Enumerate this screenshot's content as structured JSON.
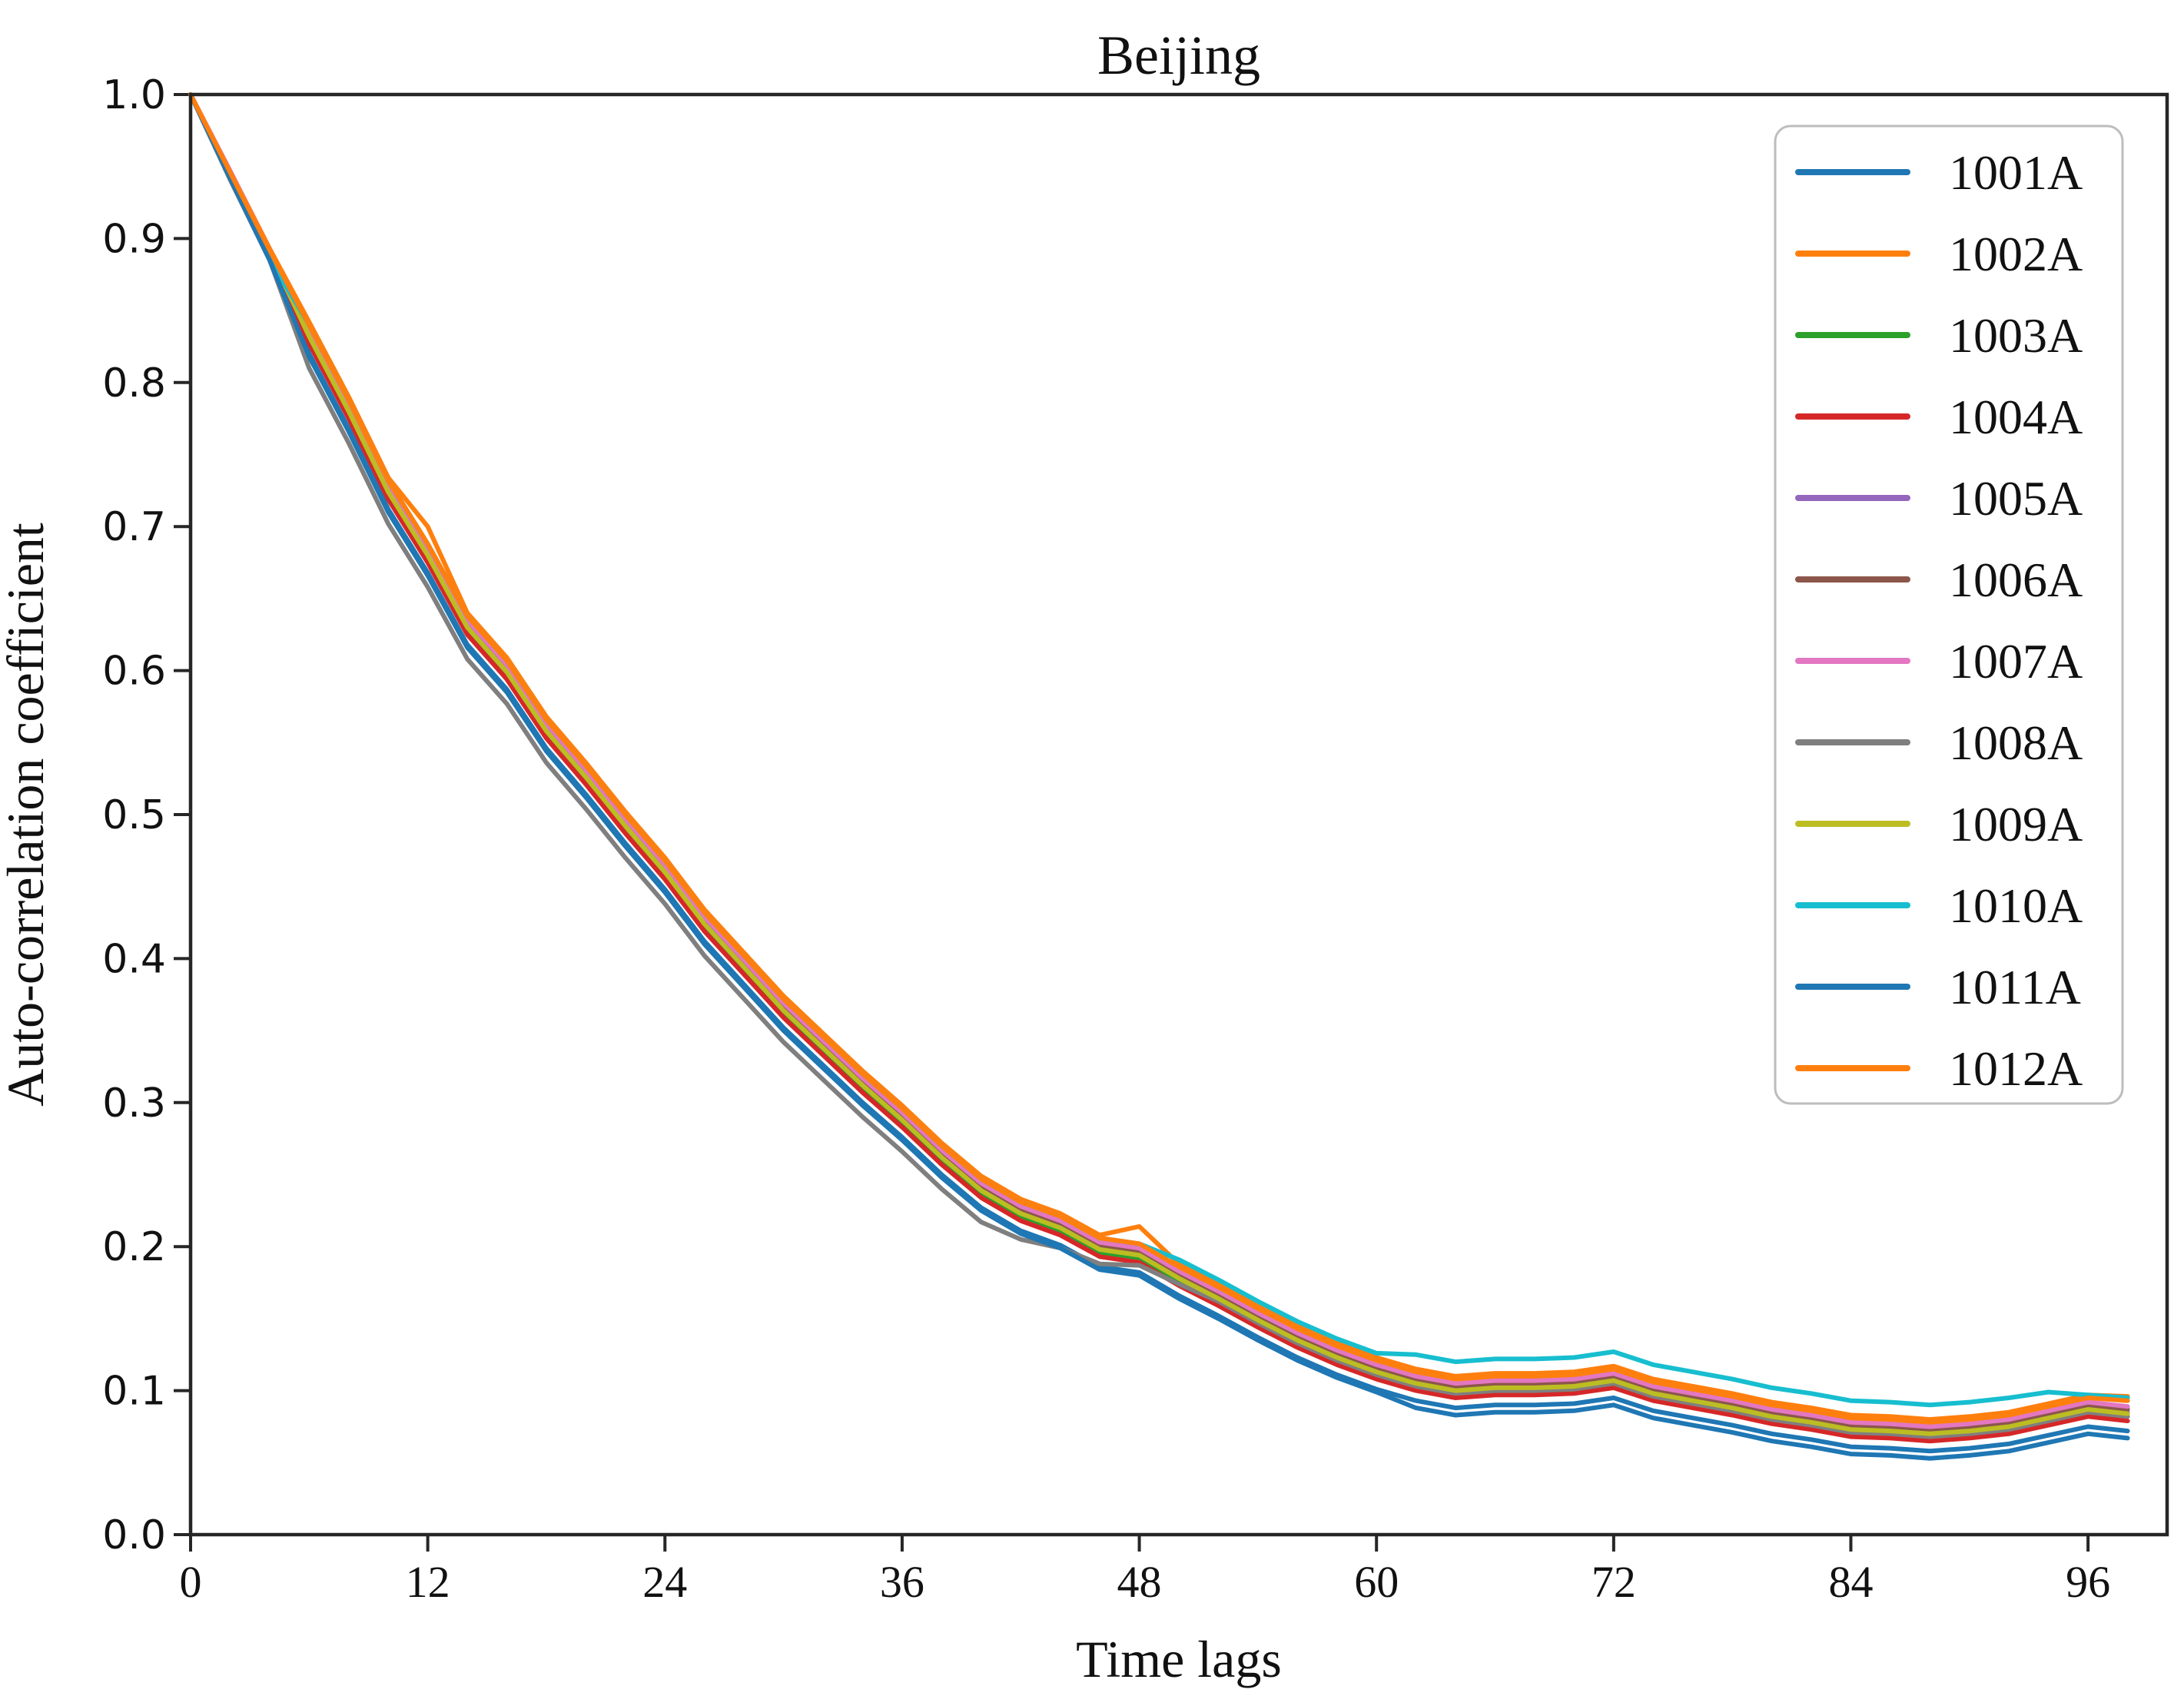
{
  "chart_data": {
    "type": "line",
    "title": "Beijing",
    "xlabel": "Time lags",
    "ylabel": "Auto-correlation coefficient",
    "xlim": [
      0,
      100
    ],
    "ylim": [
      0.0,
      1.0
    ],
    "x_ticks": [
      0,
      12,
      24,
      36,
      48,
      60,
      72,
      84,
      96
    ],
    "y_ticks": [
      0.0,
      0.1,
      0.2,
      0.3,
      0.4,
      0.5,
      0.6,
      0.7,
      0.8,
      0.9,
      1.0
    ],
    "grid": false,
    "legend_position": "upper right",
    "x": [
      0,
      2,
      4,
      6,
      8,
      10,
      12,
      14,
      16,
      18,
      20,
      22,
      24,
      26,
      28,
      30,
      32,
      34,
      36,
      38,
      40,
      42,
      44,
      46,
      48,
      50,
      52,
      54,
      56,
      58,
      60,
      62,
      64,
      66,
      68,
      70,
      72,
      74,
      76,
      78,
      80,
      82,
      84,
      86,
      88,
      90,
      92,
      94,
      96,
      98
    ],
    "series": [
      {
        "name": "1001A",
        "color": "#1f77b4",
        "values": [
          1.0,
          0.943,
          0.886,
          0.82,
          0.768,
          0.712,
          0.668,
          0.618,
          0.587,
          0.546,
          0.514,
          0.48,
          0.448,
          0.412,
          0.382,
          0.352,
          0.326,
          0.3,
          0.276,
          0.25,
          0.227,
          0.211,
          0.201,
          0.186,
          0.182,
          0.166,
          0.152,
          0.137,
          0.123,
          0.111,
          0.101,
          0.093,
          0.088,
          0.09,
          0.09,
          0.091,
          0.095,
          0.086,
          0.081,
          0.076,
          0.07,
          0.066,
          0.061,
          0.06,
          0.058,
          0.06,
          0.063,
          0.069,
          0.075,
          0.072
        ]
      },
      {
        "name": "1002A",
        "color": "#ff7f0e",
        "values": [
          1.0,
          0.947,
          0.893,
          0.842,
          0.79,
          0.734,
          0.7,
          0.64,
          0.609,
          0.568,
          0.536,
          0.502,
          0.47,
          0.434,
          0.404,
          0.374,
          0.348,
          0.322,
          0.298,
          0.272,
          0.249,
          0.233,
          0.223,
          0.208,
          0.214,
          0.188,
          0.174,
          0.159,
          0.145,
          0.133,
          0.123,
          0.115,
          0.11,
          0.112,
          0.112,
          0.113,
          0.117,
          0.108,
          0.103,
          0.098,
          0.092,
          0.088,
          0.083,
          0.082,
          0.08,
          0.082,
          0.085,
          0.091,
          0.097,
          0.096
        ]
      },
      {
        "name": "1003A",
        "color": "#2ca02c",
        "values": [
          1.0,
          0.945,
          0.89,
          0.83,
          0.778,
          0.722,
          0.678,
          0.628,
          0.597,
          0.556,
          0.524,
          0.49,
          0.458,
          0.422,
          0.392,
          0.362,
          0.336,
          0.31,
          0.286,
          0.26,
          0.237,
          0.221,
          0.211,
          0.196,
          0.192,
          0.176,
          0.162,
          0.147,
          0.133,
          0.121,
          0.111,
          0.103,
          0.098,
          0.1,
          0.1,
          0.101,
          0.105,
          0.096,
          0.091,
          0.086,
          0.08,
          0.076,
          0.071,
          0.07,
          0.068,
          0.07,
          0.073,
          0.079,
          0.085,
          0.082
        ]
      },
      {
        "name": "1004A",
        "color": "#d62728",
        "values": [
          1.0,
          0.944,
          0.889,
          0.827,
          0.775,
          0.719,
          0.675,
          0.625,
          0.594,
          0.553,
          0.521,
          0.487,
          0.455,
          0.419,
          0.389,
          0.359,
          0.333,
          0.307,
          0.283,
          0.257,
          0.234,
          0.218,
          0.208,
          0.193,
          0.189,
          0.173,
          0.159,
          0.144,
          0.13,
          0.118,
          0.108,
          0.1,
          0.095,
          0.097,
          0.097,
          0.098,
          0.102,
          0.093,
          0.088,
          0.083,
          0.077,
          0.073,
          0.068,
          0.067,
          0.065,
          0.067,
          0.07,
          0.076,
          0.082,
          0.079
        ]
      },
      {
        "name": "1005A",
        "color": "#9467bd",
        "values": [
          1.0,
          0.946,
          0.891,
          0.833,
          0.781,
          0.725,
          0.681,
          0.631,
          0.6,
          0.559,
          0.527,
          0.493,
          0.461,
          0.425,
          0.395,
          0.365,
          0.339,
          0.313,
          0.289,
          0.263,
          0.24,
          0.224,
          0.214,
          0.199,
          0.195,
          0.179,
          0.165,
          0.15,
          0.136,
          0.124,
          0.114,
          0.106,
          0.101,
          0.103,
          0.103,
          0.104,
          0.108,
          0.099,
          0.094,
          0.089,
          0.083,
          0.079,
          0.074,
          0.073,
          0.071,
          0.073,
          0.076,
          0.082,
          0.088,
          0.085
        ]
      },
      {
        "name": "1006A",
        "color": "#8c564b",
        "values": [
          1.0,
          0.946,
          0.892,
          0.835,
          0.783,
          0.727,
          0.683,
          0.633,
          0.602,
          0.561,
          0.529,
          0.495,
          0.463,
          0.427,
          0.397,
          0.367,
          0.341,
          0.315,
          0.291,
          0.265,
          0.242,
          0.226,
          0.216,
          0.201,
          0.197,
          0.181,
          0.167,
          0.152,
          0.138,
          0.126,
          0.116,
          0.108,
          0.103,
          0.105,
          0.105,
          0.106,
          0.11,
          0.101,
          0.096,
          0.091,
          0.085,
          0.081,
          0.076,
          0.075,
          0.073,
          0.075,
          0.078,
          0.084,
          0.09,
          0.087
        ]
      },
      {
        "name": "1007A",
        "color": "#e377c2",
        "values": [
          1.0,
          0.947,
          0.892,
          0.837,
          0.785,
          0.729,
          0.685,
          0.635,
          0.604,
          0.563,
          0.531,
          0.497,
          0.465,
          0.429,
          0.399,
          0.369,
          0.343,
          0.317,
          0.293,
          0.267,
          0.244,
          0.228,
          0.218,
          0.203,
          0.199,
          0.183,
          0.169,
          0.154,
          0.14,
          0.128,
          0.118,
          0.11,
          0.105,
          0.107,
          0.107,
          0.108,
          0.112,
          0.103,
          0.098,
          0.093,
          0.087,
          0.083,
          0.078,
          0.077,
          0.075,
          0.077,
          0.08,
          0.086,
          0.092,
          0.089
        ]
      },
      {
        "name": "1008A",
        "color": "#7f7f7f",
        "values": [
          1.0,
          0.941,
          0.885,
          0.81,
          0.758,
          0.702,
          0.658,
          0.608,
          0.577,
          0.536,
          0.504,
          0.47,
          0.438,
          0.402,
          0.372,
          0.342,
          0.316,
          0.29,
          0.266,
          0.24,
          0.217,
          0.205,
          0.199,
          0.188,
          0.187,
          0.174,
          0.162,
          0.147,
          0.133,
          0.121,
          0.111,
          0.103,
          0.098,
          0.1,
          0.1,
          0.101,
          0.105,
          0.096,
          0.091,
          0.086,
          0.08,
          0.076,
          0.071,
          0.07,
          0.068,
          0.07,
          0.073,
          0.079,
          0.085,
          0.082
        ]
      },
      {
        "name": "1009A",
        "color": "#bcbd22",
        "values": [
          1.0,
          0.945,
          0.89,
          0.832,
          0.78,
          0.724,
          0.68,
          0.63,
          0.599,
          0.558,
          0.526,
          0.492,
          0.46,
          0.424,
          0.394,
          0.364,
          0.338,
          0.312,
          0.288,
          0.262,
          0.239,
          0.223,
          0.213,
          0.198,
          0.194,
          0.178,
          0.164,
          0.149,
          0.135,
          0.123,
          0.113,
          0.105,
          0.1,
          0.102,
          0.102,
          0.103,
          0.107,
          0.098,
          0.093,
          0.088,
          0.082,
          0.078,
          0.073,
          0.072,
          0.07,
          0.072,
          0.075,
          0.081,
          0.087,
          0.084
        ]
      },
      {
        "name": "1010A",
        "color": "#17becf",
        "values": [
          1.0,
          0.943,
          0.886,
          0.84,
          0.788,
          0.732,
          0.688,
          0.638,
          0.607,
          0.566,
          0.534,
          0.5,
          0.468,
          0.432,
          0.402,
          0.372,
          0.346,
          0.32,
          0.296,
          0.27,
          0.247,
          0.231,
          0.221,
          0.206,
          0.202,
          0.191,
          0.177,
          0.162,
          0.148,
          0.136,
          0.126,
          0.125,
          0.12,
          0.122,
          0.122,
          0.123,
          0.127,
          0.118,
          0.113,
          0.108,
          0.102,
          0.098,
          0.093,
          0.092,
          0.09,
          0.092,
          0.095,
          0.099,
          0.097,
          0.095
        ]
      },
      {
        "name": "1011A",
        "color": "#1f77b4",
        "values": [
          1.0,
          0.942,
          0.885,
          0.818,
          0.766,
          0.71,
          0.666,
          0.616,
          0.585,
          0.544,
          0.512,
          0.478,
          0.446,
          0.41,
          0.38,
          0.35,
          0.324,
          0.298,
          0.274,
          0.248,
          0.225,
          0.209,
          0.199,
          0.184,
          0.18,
          0.164,
          0.15,
          0.135,
          0.121,
          0.109,
          0.099,
          0.088,
          0.083,
          0.085,
          0.085,
          0.086,
          0.09,
          0.081,
          0.076,
          0.071,
          0.065,
          0.061,
          0.056,
          0.055,
          0.053,
          0.055,
          0.058,
          0.064,
          0.07,
          0.067
        ]
      },
      {
        "name": "1012A",
        "color": "#ff7f0e",
        "values": [
          1.0,
          0.946,
          0.892,
          0.84,
          0.788,
          0.732,
          0.688,
          0.638,
          0.607,
          0.566,
          0.534,
          0.5,
          0.468,
          0.432,
          0.402,
          0.372,
          0.346,
          0.32,
          0.296,
          0.27,
          0.247,
          0.231,
          0.221,
          0.206,
          0.202,
          0.186,
          0.172,
          0.157,
          0.143,
          0.131,
          0.121,
          0.113,
          0.108,
          0.11,
          0.11,
          0.111,
          0.115,
          0.106,
          0.101,
          0.096,
          0.09,
          0.086,
          0.081,
          0.08,
          0.078,
          0.08,
          0.083,
          0.089,
          0.095,
          0.093
        ]
      }
    ]
  }
}
